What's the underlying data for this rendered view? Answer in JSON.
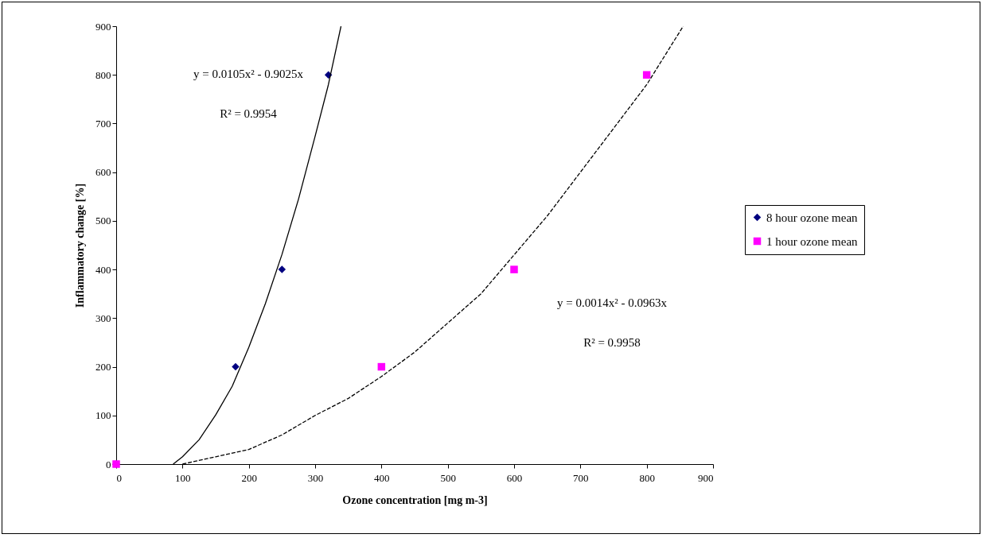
{
  "chart_data": {
    "type": "scatter",
    "xlabel": "Ozone concentration [mg m-3]",
    "ylabel": "Inflammatory change [%]",
    "xlim": [
      0,
      900
    ],
    "xticks": [
      0,
      100,
      200,
      300,
      400,
      500,
      600,
      700,
      800,
      900
    ],
    "ylim": [
      0,
      900
    ],
    "yticks": [
      0,
      100,
      200,
      300,
      400,
      500,
      600,
      700,
      800,
      900
    ],
    "grid": false,
    "legend": "right",
    "series": [
      {
        "name": "8 hour ozone mean",
        "marker": "diamond",
        "color": "#000080",
        "x": [
          0,
          180,
          250,
          320
        ],
        "values": [
          0,
          200,
          400,
          800
        ]
      },
      {
        "name": "1 hour ozone mean",
        "marker": "square",
        "color": "#ff00ff",
        "x": [
          0,
          400,
          600,
          800
        ],
        "values": [
          0,
          200,
          400,
          800
        ]
      },
      {
        "type": "line",
        "color": "#000000",
        "line_style": "solid",
        "x": [
          86,
          100,
          125,
          150,
          175,
          200,
          225,
          250,
          275,
          300,
          320,
          339
        ],
        "values": [
          0,
          15,
          50,
          101,
          160,
          240,
          330,
          431,
          545,
          674,
          780,
          900
        ]
      },
      {
        "type": "line",
        "color": "#000000",
        "line_style": "dashed",
        "x": [
          100,
          150,
          200,
          250,
          300,
          350,
          400,
          450,
          500,
          550,
          600,
          650,
          700,
          750,
          800,
          855
        ],
        "values": [
          0,
          15,
          30,
          60,
          100,
          135,
          180,
          230,
          290,
          350,
          430,
          510,
          600,
          690,
          780,
          900
        ]
      }
    ],
    "annotations": [
      "y = 0.0105x² - 0.9025x",
      "R² = 0.9954",
      "y = 0.0014x² - 0.0963x",
      "R² = 0.9958"
    ]
  }
}
